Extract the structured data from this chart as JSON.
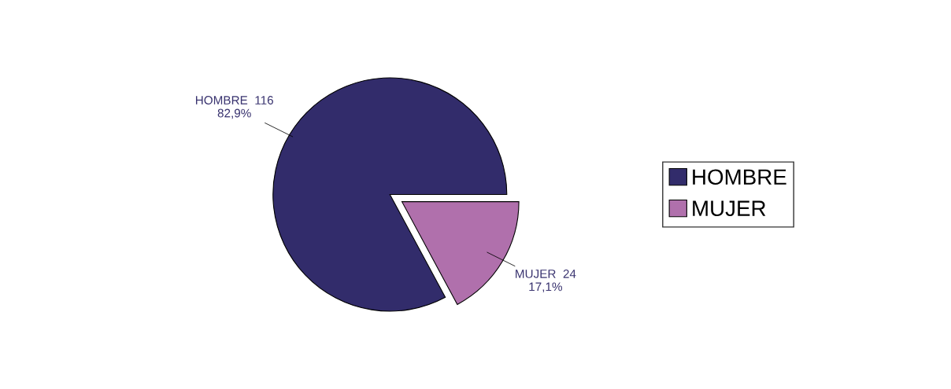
{
  "chart_data": {
    "type": "pie",
    "categories": [
      "HOMBRE",
      "MUJER"
    ],
    "values": [
      116,
      24
    ],
    "colors": [
      "#322c6b",
      "#b070ac"
    ],
    "value_labels": [
      "HOMBRE  116\n82,9%",
      "MUJER  24\n17,1%"
    ],
    "legend": "right"
  }
}
